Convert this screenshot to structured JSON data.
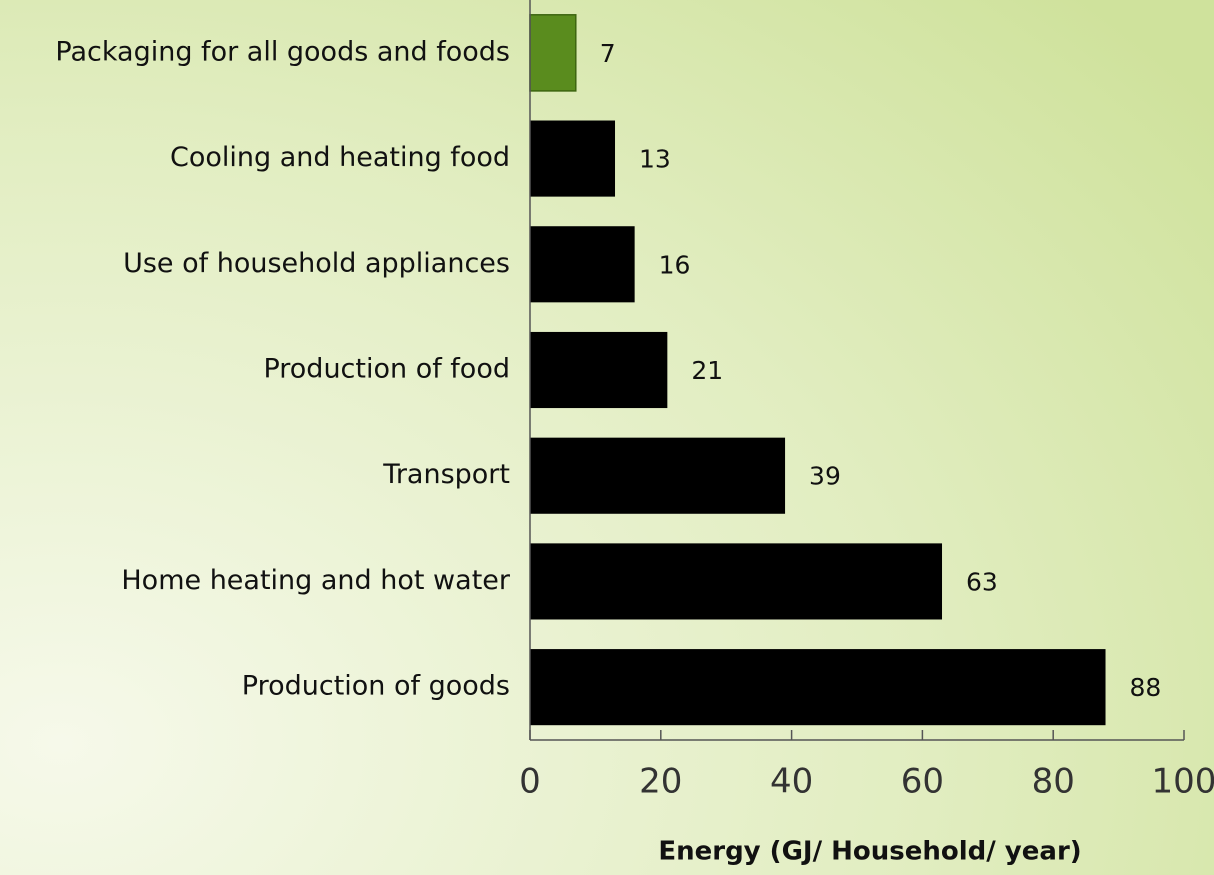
{
  "chart_data": {
    "type": "bar",
    "orientation": "horizontal",
    "x_label": "Energy (GJ/ Household/ year)",
    "categories": [
      "Packaging for all goods and foods",
      "Cooling and heating food",
      "Use of household appliances",
      "Production of food",
      "Transport",
      "Home heating and hot water",
      "Production of goods"
    ],
    "values": [
      7,
      13,
      16,
      21,
      39,
      63,
      88
    ],
    "colors": [
      "#5a8c1e",
      "#000000",
      "#000000",
      "#000000",
      "#000000",
      "#000000",
      "#000000"
    ],
    "xlim": [
      0,
      100
    ],
    "xticks": [
      0,
      20,
      40,
      60,
      80,
      100
    ],
    "grid": false
  }
}
